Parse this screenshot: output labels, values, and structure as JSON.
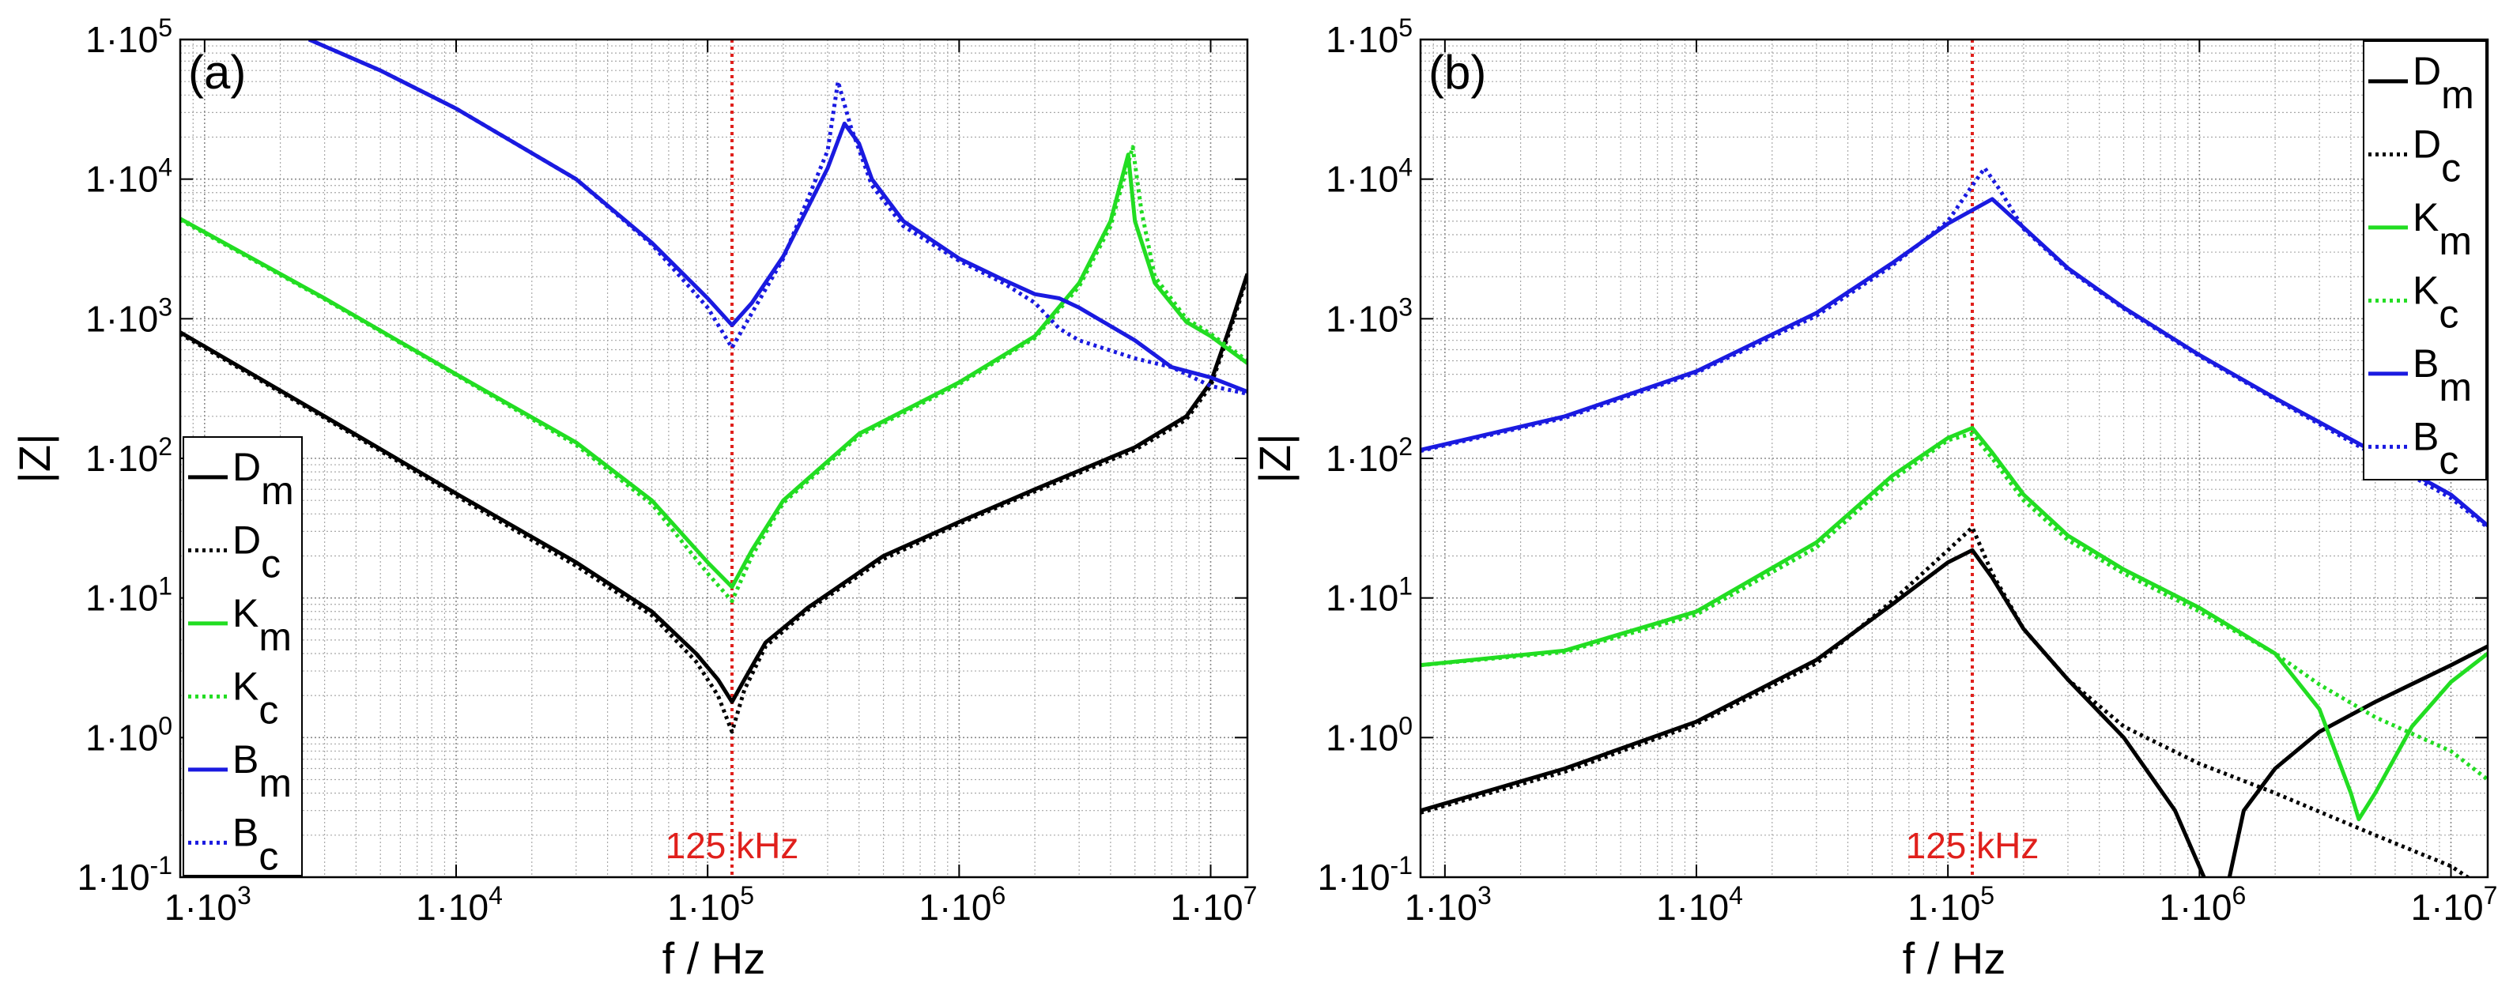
{
  "chart_data": [
    {
      "type": "line",
      "panel_label": "(a)",
      "xlabel": "f / Hz",
      "ylabel": "|Z|",
      "xscale": "log",
      "yscale": "log",
      "xlim": [
        800,
        14000000
      ],
      "ylim": [
        0.1,
        100000
      ],
      "grid": true,
      "xticks": [
        {
          "value": 1000,
          "mantissa": "1·10",
          "exp": "3"
        },
        {
          "value": 10000,
          "mantissa": "1·10",
          "exp": "4"
        },
        {
          "value": 100000,
          "mantissa": "1·10",
          "exp": "5"
        },
        {
          "value": 1000000,
          "mantissa": "1·10",
          "exp": "6"
        },
        {
          "value": 10000000,
          "mantissa": "1·10",
          "exp": "7"
        }
      ],
      "yticks": [
        {
          "value": 0.1,
          "mantissa": "1·10",
          "exp": "-1"
        },
        {
          "value": 1,
          "mantissa": "1·10",
          "exp": "0"
        },
        {
          "value": 10,
          "mantissa": "1·10",
          "exp": "1"
        },
        {
          "value": 100,
          "mantissa": "1·10",
          "exp": "2"
        },
        {
          "value": 1000,
          "mantissa": "1·10",
          "exp": "3"
        },
        {
          "value": 10000,
          "mantissa": "1·10",
          "exp": "4"
        },
        {
          "value": 100000,
          "mantissa": "1·10",
          "exp": "5"
        }
      ],
      "marker_line": {
        "x": 125000,
        "label": "125 kHz",
        "color": "#e0201c"
      },
      "legend_position": "bottom-left",
      "series": [
        {
          "name": "D",
          "sub": "m",
          "color": "#000000",
          "style": "solid",
          "x": [
            800,
            3000,
            10000,
            30000,
            60000,
            90000,
            110000,
            125000,
            140000,
            170000,
            250000,
            500000,
            1000000,
            2000000,
            5000000,
            8000000,
            10000000,
            12000000,
            14000000
          ],
          "y": [
            800,
            200,
            56,
            18,
            8,
            4,
            2.6,
            1.8,
            2.6,
            4.8,
            8.5,
            20,
            35,
            60,
            120,
            200,
            350,
            900,
            2100
          ]
        },
        {
          "name": "D",
          "sub": "c",
          "color": "#000000",
          "style": "dotted",
          "x": [
            800,
            3000,
            10000,
            30000,
            60000,
            90000,
            110000,
            125000,
            140000,
            170000,
            250000,
            500000,
            1000000,
            2000000,
            5000000,
            8000000,
            10000000,
            12000000,
            14000000
          ],
          "y": [
            780,
            195,
            54,
            17,
            7.5,
            3.5,
            2.0,
            1.1,
            2.2,
            4.5,
            8.2,
            19,
            34,
            58,
            115,
            190,
            330,
            850,
            2000
          ]
        },
        {
          "name": "K",
          "sub": "m",
          "color": "#22dd22",
          "style": "solid",
          "x": [
            800,
            3000,
            10000,
            30000,
            60000,
            100000,
            125000,
            150000,
            200000,
            400000,
            1000000,
            2000000,
            3000000,
            4000000,
            4700000,
            5000000,
            6000000,
            8000000,
            10000000,
            14000000
          ],
          "y": [
            5200,
            1400,
            400,
            130,
            50,
            18,
            12,
            22,
            50,
            150,
            350,
            750,
            1800,
            5000,
            15000,
            5000,
            1800,
            950,
            750,
            480
          ]
        },
        {
          "name": "K",
          "sub": "c",
          "color": "#22dd22",
          "style": "dotted",
          "x": [
            800,
            3000,
            10000,
            30000,
            60000,
            100000,
            125000,
            150000,
            200000,
            400000,
            1000000,
            2000000,
            3000000,
            4000000,
            4900000,
            5300000,
            6000000,
            8000000,
            10000000,
            14000000
          ],
          "y": [
            5100,
            1380,
            395,
            125,
            47,
            15,
            9.5,
            20,
            48,
            145,
            340,
            730,
            1700,
            4600,
            17000,
            6000,
            2000,
            1000,
            780,
            500
          ]
        },
        {
          "name": "B",
          "sub": "m",
          "color": "#1a1ae0",
          "style": "solid",
          "x": [
            2600,
            5000,
            10000,
            30000,
            60000,
            100000,
            125000,
            150000,
            200000,
            300000,
            350000,
            400000,
            450000,
            600000,
            1000000,
            1500000,
            2000000,
            2500000,
            3000000,
            5000000,
            7000000,
            10000000,
            14000000
          ],
          "y": [
            100000,
            60000,
            32000,
            10000,
            3500,
            1400,
            900,
            1300,
            2800,
            12000,
            25000,
            18000,
            10000,
            5000,
            2700,
            1900,
            1500,
            1400,
            1200,
            700,
            450,
            380,
            300
          ]
        },
        {
          "name": "B",
          "sub": "c",
          "color": "#1a1ae0",
          "style": "dotted",
          "x": [
            2600,
            5000,
            10000,
            30000,
            60000,
            100000,
            125000,
            150000,
            200000,
            300000,
            330000,
            370000,
            450000,
            600000,
            1000000,
            1500000,
            2000000,
            2500000,
            3000000,
            5000000,
            7000000,
            10000000,
            14000000
          ],
          "y": [
            100000,
            60000,
            32000,
            10000,
            3400,
            1200,
            620,
            1100,
            2700,
            16000,
            50000,
            24000,
            9000,
            4600,
            2600,
            1800,
            1300,
            850,
            700,
            520,
            450,
            330,
            290
          ]
        }
      ]
    },
    {
      "type": "line",
      "panel_label": "(b)",
      "xlabel": "f / Hz",
      "ylabel": "|Z|",
      "xscale": "log",
      "yscale": "log",
      "xlim": [
        800,
        14000000
      ],
      "ylim": [
        0.1,
        100000
      ],
      "grid": true,
      "xticks": [
        {
          "value": 1000,
          "mantissa": "1·10",
          "exp": "3"
        },
        {
          "value": 10000,
          "mantissa": "1·10",
          "exp": "4"
        },
        {
          "value": 100000,
          "mantissa": "1·10",
          "exp": "5"
        },
        {
          "value": 1000000,
          "mantissa": "1·10",
          "exp": "6"
        },
        {
          "value": 10000000,
          "mantissa": "1·10",
          "exp": "7"
        }
      ],
      "yticks": [
        {
          "value": 0.1,
          "mantissa": "1·10",
          "exp": "-1"
        },
        {
          "value": 1,
          "mantissa": "1·10",
          "exp": "0"
        },
        {
          "value": 10,
          "mantissa": "1·10",
          "exp": "1"
        },
        {
          "value": 100,
          "mantissa": "1·10",
          "exp": "2"
        },
        {
          "value": 1000,
          "mantissa": "1·10",
          "exp": "3"
        },
        {
          "value": 10000,
          "mantissa": "1·10",
          "exp": "4"
        },
        {
          "value": 100000,
          "mantissa": "1·10",
          "exp": "5"
        }
      ],
      "marker_line": {
        "x": 125000,
        "label": "125 kHz",
        "color": "#e0201c"
      },
      "legend_position": "top-right",
      "series": [
        {
          "name": "D",
          "sub": "m",
          "color": "#000000",
          "style": "solid",
          "x": [
            800,
            3000,
            10000,
            30000,
            60000,
            100000,
            125000,
            150000,
            200000,
            300000,
            500000,
            800000,
            1100000,
            1300000,
            1500000,
            2000000,
            3000000,
            5000000,
            10000000,
            14000000
          ],
          "y": [
            0.3,
            0.6,
            1.3,
            3.6,
            9,
            18,
            22,
            14,
            6,
            2.6,
            1.0,
            0.3,
            0.08,
            0.09,
            0.3,
            0.6,
            1.1,
            1.8,
            3.3,
            4.5
          ]
        },
        {
          "name": "D",
          "sub": "c",
          "color": "#000000",
          "style": "dotted",
          "x": [
            800,
            3000,
            10000,
            30000,
            60000,
            100000,
            125000,
            150000,
            200000,
            300000,
            500000,
            1000000,
            2000000,
            5000000,
            10000000,
            14000000
          ],
          "y": [
            0.29,
            0.57,
            1.25,
            3.4,
            9.5,
            22,
            32,
            15,
            6,
            2.6,
            1.2,
            0.65,
            0.4,
            0.2,
            0.12,
            0.08
          ]
        },
        {
          "name": "K",
          "sub": "m",
          "color": "#22dd22",
          "style": "solid",
          "x": [
            800,
            3000,
            10000,
            30000,
            60000,
            100000,
            125000,
            150000,
            200000,
            300000,
            500000,
            1000000,
            2000000,
            3000000,
            4000000,
            4300000,
            5000000,
            7000000,
            10000000,
            14000000
          ],
          "y": [
            3.3,
            4.2,
            8,
            25,
            75,
            140,
            165,
            110,
            55,
            28,
            16,
            8.5,
            4,
            1.6,
            0.4,
            0.26,
            0.4,
            1.2,
            2.5,
            4
          ]
        },
        {
          "name": "K",
          "sub": "c",
          "color": "#22dd22",
          "style": "dotted",
          "x": [
            800,
            3000,
            10000,
            30000,
            60000,
            100000,
            125000,
            150000,
            200000,
            300000,
            500000,
            1000000,
            2000000,
            3000000,
            5000000,
            10000000,
            14000000
          ],
          "y": [
            3.3,
            4.1,
            7.6,
            23,
            70,
            135,
            150,
            100,
            50,
            26,
            15,
            8,
            4,
            2.4,
            1.4,
            0.8,
            0.5
          ]
        },
        {
          "name": "B",
          "sub": "m",
          "color": "#1a1ae0",
          "style": "solid",
          "x": [
            800,
            3000,
            10000,
            30000,
            60000,
            100000,
            125000,
            150000,
            200000,
            300000,
            500000,
            1000000,
            2000000,
            5000000,
            10000000,
            14000000
          ],
          "y": [
            115,
            200,
            420,
            1100,
            2500,
            4800,
            6000,
            7200,
            4500,
            2300,
            1200,
            550,
            270,
            110,
            55,
            33
          ]
        },
        {
          "name": "B",
          "sub": "c",
          "color": "#1a1ae0",
          "style": "dotted",
          "x": [
            800,
            3000,
            10000,
            30000,
            60000,
            100000,
            125000,
            140000,
            160000,
            200000,
            300000,
            500000,
            1000000,
            2000000,
            5000000,
            10000000,
            14000000
          ],
          "y": [
            113,
            195,
            410,
            1050,
            2400,
            5000,
            9000,
            12000,
            8500,
            4400,
            2250,
            1180,
            540,
            265,
            105,
            52,
            32
          ]
        }
      ]
    }
  ]
}
